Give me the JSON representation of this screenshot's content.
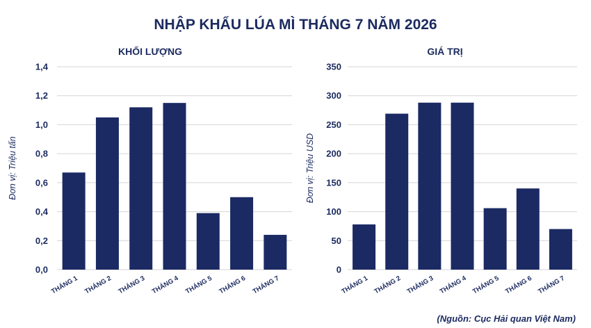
{
  "page": {
    "title": "NHẬP KHẨU LÚA MÌ THÁNG 7 NĂM 2026",
    "source": "(Nguồn: Cục Hải quan Việt Nam)"
  },
  "colors": {
    "bar": "#1b2a63",
    "text": "#1b2a5e",
    "grid": "#d4d4d4"
  },
  "chart_data": [
    {
      "type": "bar",
      "title": "KHỐI LƯỢNG",
      "ylabel": "Đơn vị: Triệu tấn",
      "categories": [
        "THÁNG 1",
        "THÁNG 2",
        "THÁNG 3",
        "THÁNG 4",
        "THÁNG 5",
        "THÁNG 6",
        "THÁNG 7"
      ],
      "values": [
        0.67,
        1.05,
        1.12,
        1.15,
        0.39,
        0.5,
        0.24
      ],
      "ylim": [
        0,
        1.4
      ],
      "yticks": [
        "0,0",
        "0,2",
        "0,4",
        "0,6",
        "0,8",
        "1,0",
        "1,2",
        "1,4"
      ],
      "grid": true
    },
    {
      "type": "bar",
      "title": "GIÁ TRỊ",
      "ylabel": "Đơn vị: Triệu USD",
      "categories": [
        "THÁNG 1",
        "THÁNG 2",
        "THÁNG 3",
        "THÁNG 4",
        "THÁNG 5",
        "THÁNG 6",
        "THÁNG 7"
      ],
      "values": [
        78,
        269,
        288,
        288,
        106,
        140,
        70
      ],
      "ylim": [
        0,
        350
      ],
      "yticks": [
        "0",
        "50",
        "100",
        "150",
        "200",
        "250",
        "300",
        "350"
      ],
      "grid": true
    }
  ]
}
